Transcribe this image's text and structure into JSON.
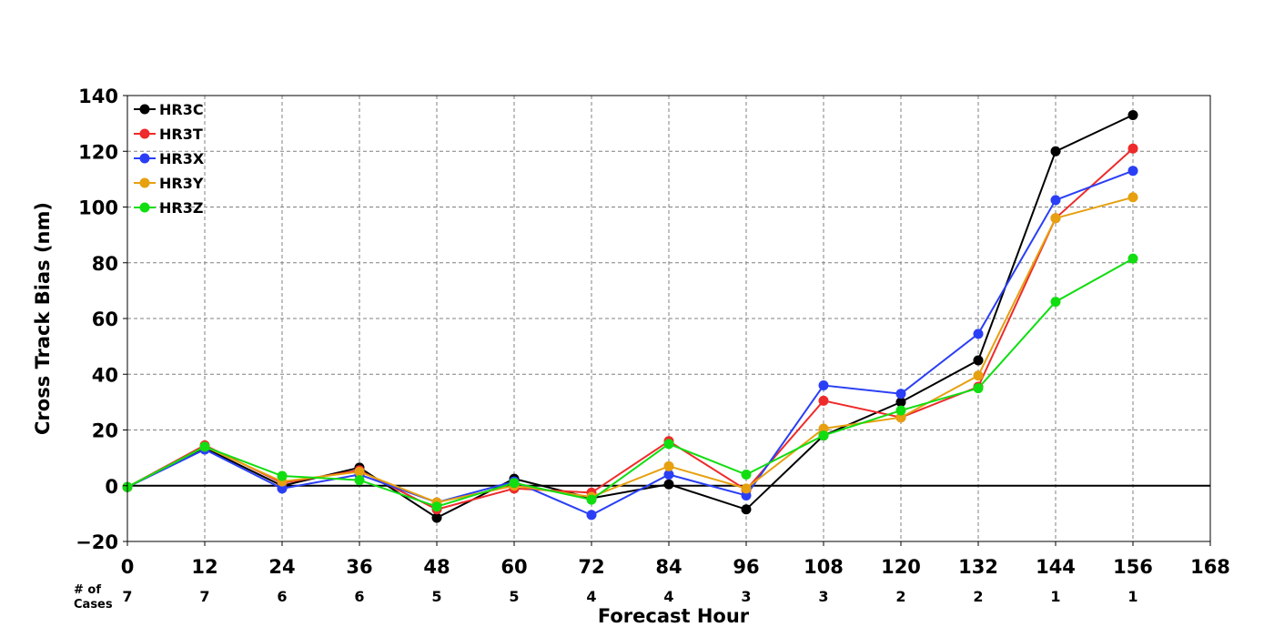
{
  "chart_data": {
    "type": "line",
    "xlabel": "Forecast Hour",
    "ylabel": "Cross Track Bias (nm)",
    "xlim": [
      0,
      168
    ],
    "ylim": [
      -20,
      140
    ],
    "x_ticks": [
      0,
      12,
      24,
      36,
      48,
      60,
      72,
      84,
      96,
      108,
      120,
      132,
      144,
      156,
      168
    ],
    "y_ticks": [
      -20,
      0,
      20,
      40,
      60,
      80,
      100,
      120,
      140
    ],
    "x_tick_labels": [
      "0",
      "12",
      "24",
      "36",
      "48",
      "60",
      "72",
      "84",
      "96",
      "108",
      "120",
      "132",
      "144",
      "156",
      "168"
    ],
    "y_tick_labels": [
      "−20",
      "0",
      "20",
      "40",
      "60",
      "80",
      "100",
      "120",
      "140"
    ],
    "grid": true,
    "zero_line": true,
    "legend_position": "top-left",
    "x": [
      0,
      12,
      24,
      36,
      48,
      60,
      72,
      84,
      96,
      108,
      120,
      132,
      144,
      156
    ],
    "series": [
      {
        "name": "HR3C",
        "color": "#000000",
        "values": [
          -0.5,
          13.5,
          0,
          6.5,
          -11.5,
          2.5,
          -4.5,
          0.5,
          -8.5,
          18,
          30,
          45,
          120,
          133
        ]
      },
      {
        "name": "HR3T",
        "color": "#ee2a2a",
        "values": [
          -0.5,
          14.5,
          1,
          5.5,
          -8.5,
          -1,
          -2.5,
          16,
          -1.5,
          30.5,
          24.5,
          35.5,
          96,
          121
        ]
      },
      {
        "name": "HR3X",
        "color": "#2a3ff5",
        "values": [
          -0.5,
          13,
          -1,
          4,
          -6,
          1.5,
          -10.5,
          4,
          -3.5,
          36,
          33,
          54.5,
          102.5,
          113
        ]
      },
      {
        "name": "HR3Y",
        "color": "#e6a010",
        "values": [
          -0.5,
          14,
          1.5,
          5,
          -6,
          0,
          -4,
          7,
          -1,
          20.5,
          24.5,
          39.5,
          96,
          103.5
        ]
      },
      {
        "name": "HR3Z",
        "color": "#11dd11",
        "values": [
          -0.5,
          14,
          3.5,
          2,
          -7.5,
          1,
          -5,
          15,
          4,
          18,
          27,
          35,
          66,
          81.5
        ]
      }
    ],
    "cases": {
      "title_line1": "# of",
      "title_line2": "Cases",
      "values": [
        "7",
        "7",
        "6",
        "6",
        "5",
        "5",
        "4",
        "4",
        "3",
        "3",
        "2",
        "2",
        "1",
        "1"
      ]
    }
  }
}
